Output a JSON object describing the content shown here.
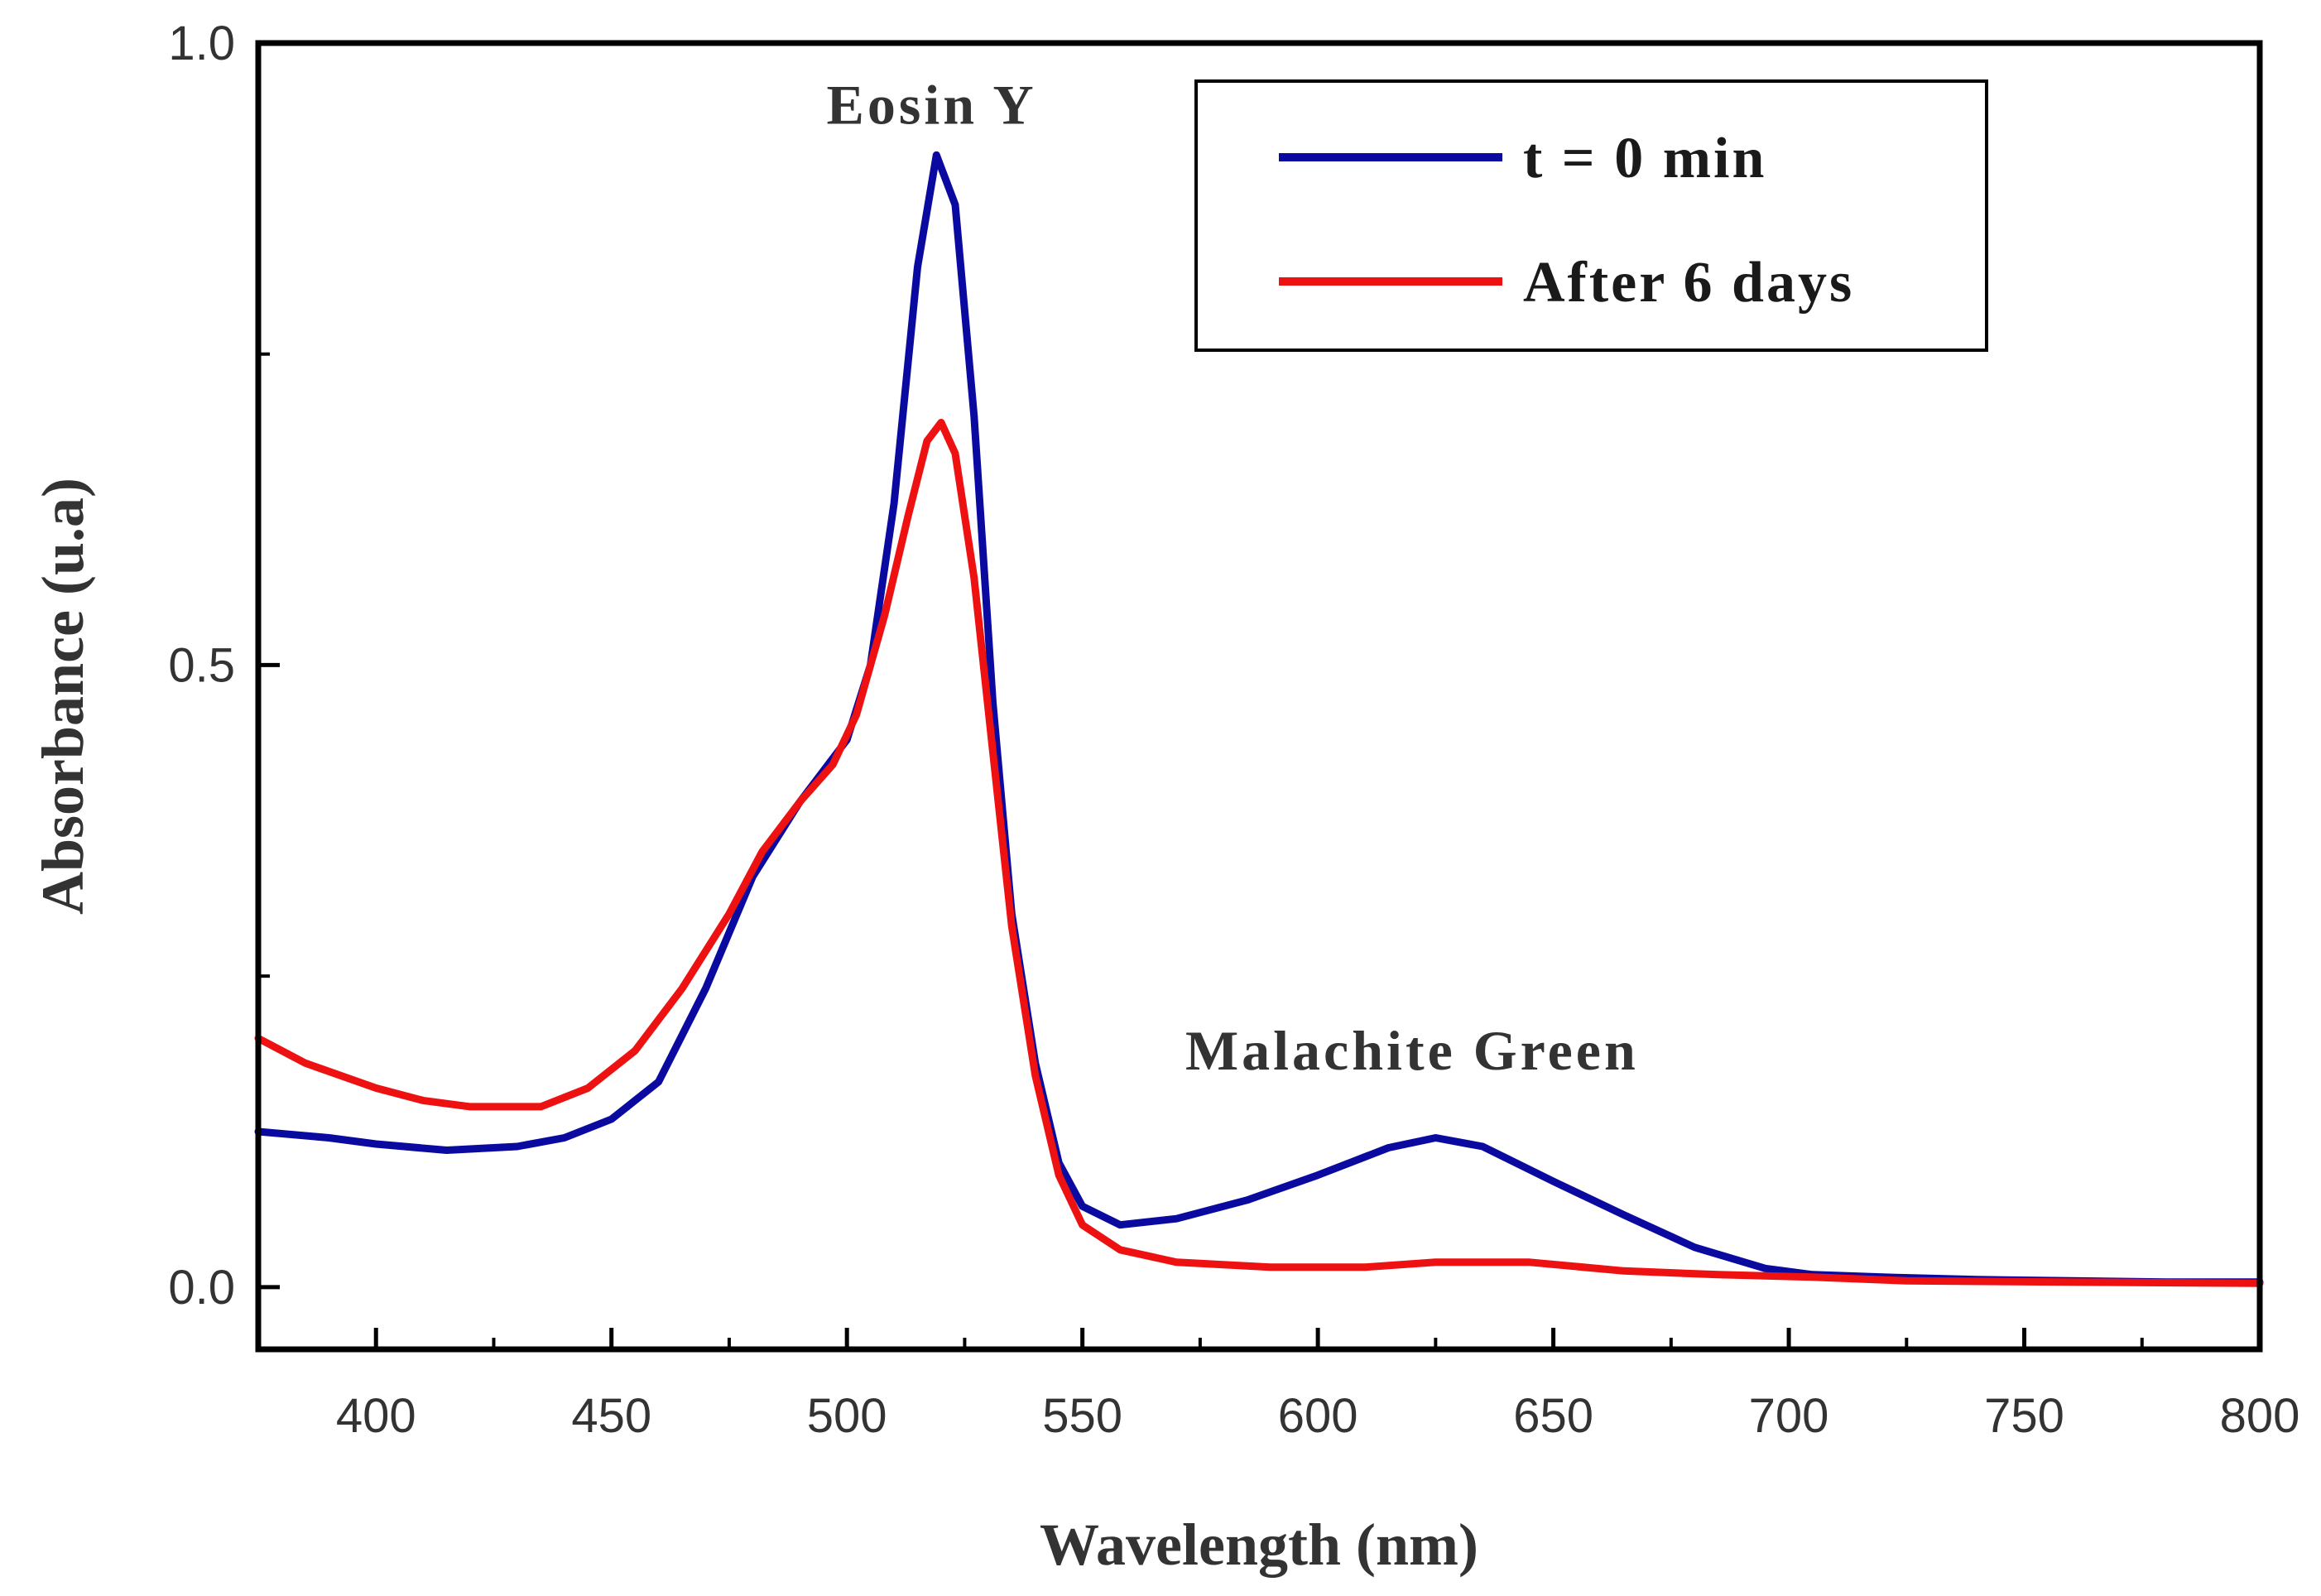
{
  "chart_data": {
    "type": "line",
    "title": "",
    "xlabel": "Wavelength (nm)",
    "ylabel": "Absorbance (u.a)",
    "xlim": [
      375,
      800
    ],
    "ylim": [
      -0.05,
      1.0
    ],
    "x_ticks": [
      400,
      450,
      500,
      550,
      600,
      650,
      700,
      750,
      800
    ],
    "x_tick_labels": [
      "400",
      "450",
      "500",
      "550",
      "600",
      "650",
      "700",
      "750",
      "800"
    ],
    "y_ticks": [
      0.0,
      0.5,
      1.0
    ],
    "y_tick_labels": [
      "0.0",
      "0.5",
      "1.0"
    ],
    "grid": false,
    "legend_position": "top-right",
    "annotations": [
      {
        "text": "Eosin Y",
        "x": 518,
        "y": 0.935
      },
      {
        "text": "Malachite Green",
        "x": 620,
        "y": 0.175
      }
    ],
    "series": [
      {
        "name": "t = 0 min",
        "color": "#0a0aa0",
        "points": [
          [
            375,
            0.125
          ],
          [
            390,
            0.12
          ],
          [
            400,
            0.115
          ],
          [
            415,
            0.11
          ],
          [
            430,
            0.113
          ],
          [
            440,
            0.12
          ],
          [
            450,
            0.135
          ],
          [
            460,
            0.165
          ],
          [
            470,
            0.24
          ],
          [
            480,
            0.33
          ],
          [
            490,
            0.39
          ],
          [
            500,
            0.44
          ],
          [
            505,
            0.5
          ],
          [
            510,
            0.63
          ],
          [
            515,
            0.82
          ],
          [
            519,
            0.91
          ],
          [
            523,
            0.87
          ],
          [
            527,
            0.7
          ],
          [
            531,
            0.47
          ],
          [
            535,
            0.3
          ],
          [
            540,
            0.18
          ],
          [
            545,
            0.1
          ],
          [
            550,
            0.065
          ],
          [
            558,
            0.05
          ],
          [
            570,
            0.055
          ],
          [
            585,
            0.07
          ],
          [
            600,
            0.09
          ],
          [
            615,
            0.112
          ],
          [
            625,
            0.12
          ],
          [
            635,
            0.113
          ],
          [
            650,
            0.085
          ],
          [
            665,
            0.058
          ],
          [
            680,
            0.032
          ],
          [
            695,
            0.015
          ],
          [
            705,
            0.01
          ],
          [
            720,
            0.008
          ],
          [
            740,
            0.006
          ],
          [
            760,
            0.005
          ],
          [
            780,
            0.004
          ],
          [
            800,
            0.004
          ]
        ]
      },
      {
        "name": "After 6 days",
        "color": "#ee1111",
        "points": [
          [
            375,
            0.2
          ],
          [
            385,
            0.18
          ],
          [
            400,
            0.16
          ],
          [
            410,
            0.15
          ],
          [
            420,
            0.145
          ],
          [
            435,
            0.145
          ],
          [
            445,
            0.16
          ],
          [
            455,
            0.19
          ],
          [
            465,
            0.24
          ],
          [
            475,
            0.3
          ],
          [
            482,
            0.35
          ],
          [
            490,
            0.39
          ],
          [
            497,
            0.42
          ],
          [
            502,
            0.46
          ],
          [
            508,
            0.54
          ],
          [
            513,
            0.62
          ],
          [
            517,
            0.68
          ],
          [
            520,
            0.695
          ],
          [
            523,
            0.67
          ],
          [
            527,
            0.57
          ],
          [
            531,
            0.43
          ],
          [
            535,
            0.29
          ],
          [
            540,
            0.17
          ],
          [
            545,
            0.09
          ],
          [
            550,
            0.05
          ],
          [
            558,
            0.03
          ],
          [
            570,
            0.02
          ],
          [
            590,
            0.016
          ],
          [
            610,
            0.016
          ],
          [
            625,
            0.02
          ],
          [
            645,
            0.02
          ],
          [
            665,
            0.013
          ],
          [
            685,
            0.01
          ],
          [
            705,
            0.008
          ],
          [
            725,
            0.005
          ],
          [
            760,
            0.004
          ],
          [
            800,
            0.003
          ]
        ]
      }
    ]
  }
}
